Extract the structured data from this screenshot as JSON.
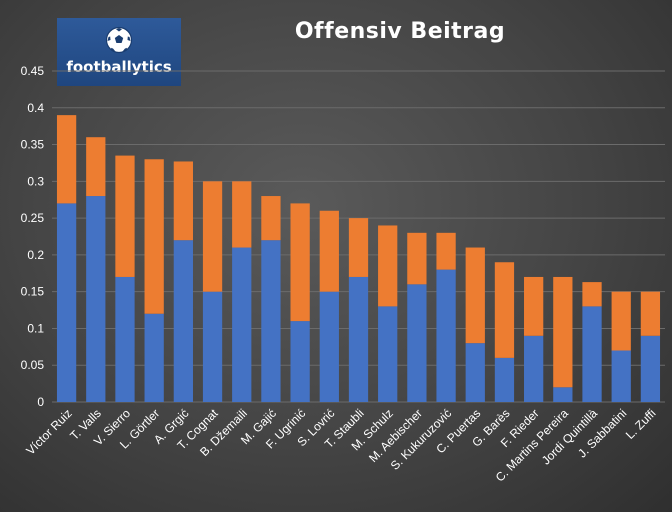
{
  "logo": {
    "text": "footballytics",
    "icon": "soccer-ball-icon"
  },
  "chart_data": {
    "type": "bar",
    "stacked": true,
    "title": "Offensiv Beitrag",
    "categories": [
      "Víctor Ruiz",
      "T. Valls",
      "V. Sierro",
      "L. Görtler",
      "A. Grgić",
      "T. Cognat",
      "B. Džemaili",
      "M. Gajić",
      "F. Ugrinić",
      "S. Lovrić",
      "T. Staubli",
      "M. Schulz",
      "M. Aebischer",
      "S. Kukuruzović",
      "C. Puertas",
      "G. Barès",
      "F. Rieder",
      "C. Martins Pereira",
      "Jordi Quintillà",
      "J. Sabbatini",
      "L. Zuffi"
    ],
    "series": [
      {
        "values": [
          0.27,
          0.28,
          0.17,
          0.12,
          0.22,
          0.15,
          0.21,
          0.22,
          0.11,
          0.15,
          0.17,
          0.13,
          0.16,
          0.18,
          0.08,
          0.06,
          0.09,
          0.02,
          0.13,
          0.07,
          0.09
        ]
      },
      {
        "values": [
          0.12,
          0.08,
          0.165,
          0.21,
          0.107,
          0.15,
          0.09,
          0.06,
          0.16,
          0.11,
          0.08,
          0.11,
          0.07,
          0.05,
          0.13,
          0.13,
          0.08,
          0.15,
          0.033,
          0.08,
          0.06
        ]
      }
    ],
    "colors": [
      "#4472c4",
      "#ed7d31"
    ],
    "ylim": [
      0,
      0.45
    ],
    "yticks": [
      "0",
      "0.05",
      "0.1",
      "0.15",
      "0.2",
      "0.25",
      "0.3",
      "0.35",
      "0.4",
      "0.45"
    ],
    "grid": true,
    "xlabel": "",
    "ylabel": ""
  }
}
